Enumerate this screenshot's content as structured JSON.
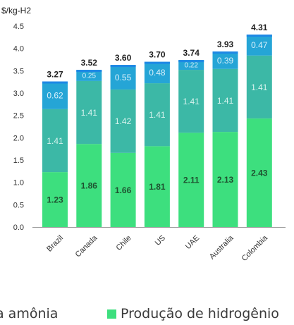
{
  "chart_data": {
    "type": "bar",
    "stacked": true,
    "unit_label": "$/kg-H2",
    "ylim": [
      0,
      4.5
    ],
    "yticks": [
      "0.0",
      "0.5",
      "1.0",
      "1.5",
      "2.0",
      "2.5",
      "3.0",
      "3.5",
      "4.0",
      "4.5"
    ],
    "categories": [
      "Brazil",
      "Canada",
      "Chile",
      "US",
      "UAE",
      "Australia",
      "Colombia"
    ],
    "series": [
      {
        "name": "Produção de hidrogênio",
        "color": "#3ddf7e",
        "values": [
          1.23,
          1.86,
          1.66,
          1.81,
          2.11,
          2.13,
          2.43
        ],
        "labels": [
          "1.23",
          "1.86",
          "1.66",
          "1.81",
          "2.11",
          "2.13",
          "2.43"
        ]
      },
      {
        "name": "",
        "color": "#3cb8a6",
        "values": [
          1.41,
          1.41,
          1.42,
          1.41,
          1.41,
          1.41,
          1.41
        ],
        "labels": [
          "1.41",
          "1.41",
          "1.42",
          "1.41",
          "1.41",
          "1.41",
          "1.41"
        ]
      },
      {
        "name": "",
        "color": "#25a5d6",
        "values": [
          0.62,
          0.25,
          0.55,
          0.48,
          0.22,
          0.39,
          0.47
        ],
        "labels": [
          "0.62",
          "0.25",
          "0.55",
          "0.48",
          "0.22",
          "0.39",
          "0.47"
        ]
      }
    ],
    "totals": [
      "3.27",
      "3.52",
      "3.60",
      "3.70",
      "3.74",
      "3.93",
      "4.31"
    ],
    "grid": false,
    "legend": "bottom"
  },
  "legend_items": [
    {
      "label": "a amônia",
      "color": ""
    },
    {
      "label": "Produção de hidrogênio",
      "color": "#3ddf7e"
    }
  ],
  "colors": {
    "top_strip": "#1e88e5",
    "axis": "#9a9a9a"
  }
}
